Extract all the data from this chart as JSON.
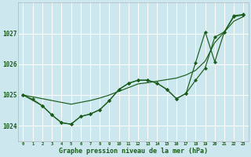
{
  "title": "Graphe pression niveau de la mer (hPa)",
  "bg_color": "#cce8ee",
  "grid_color": "#ffffff",
  "line_color": "#1a5c1a",
  "xlim": [
    -0.5,
    23.5
  ],
  "ylim": [
    1023.5,
    1028.0
  ],
  "yticks": [
    1024,
    1025,
    1026,
    1027
  ],
  "xticks": [
    0,
    1,
    2,
    3,
    4,
    5,
    6,
    7,
    8,
    9,
    10,
    11,
    12,
    13,
    14,
    15,
    16,
    17,
    18,
    19,
    20,
    21,
    22,
    23
  ],
  "line1_x": [
    0,
    1,
    2,
    3,
    4,
    5,
    6,
    7,
    8,
    9,
    10,
    11,
    12,
    13,
    14,
    15,
    16,
    17,
    18,
    19,
    20,
    21,
    22,
    23
  ],
  "line1_y": [
    1025.0,
    1024.94,
    1024.88,
    1024.82,
    1024.76,
    1024.7,
    1024.76,
    1024.82,
    1024.9,
    1025.0,
    1025.12,
    1025.24,
    1025.36,
    1025.4,
    1025.45,
    1025.5,
    1025.55,
    1025.65,
    1025.8,
    1026.1,
    1026.7,
    1027.05,
    1027.4,
    1027.55
  ],
  "line2_x": [
    0,
    1,
    2,
    3,
    4,
    5,
    6,
    7,
    8,
    9,
    10,
    11,
    12,
    13,
    14,
    15,
    16,
    17,
    18,
    19,
    20,
    21,
    22,
    23
  ],
  "line2_y": [
    1025.0,
    1024.86,
    1024.65,
    1024.35,
    1024.1,
    1024.05,
    1024.3,
    1024.38,
    1024.52,
    1024.82,
    1025.18,
    1025.38,
    1025.48,
    1025.48,
    1025.38,
    1025.18,
    1024.88,
    1025.05,
    1025.48,
    1025.88,
    1026.88,
    1027.05,
    1027.55,
    1027.6
  ],
  "line3_x": [
    0,
    2,
    3,
    4,
    5,
    6,
    7,
    8,
    9,
    10,
    11,
    12,
    13,
    14,
    15,
    16,
    17,
    18,
    19,
    20,
    21,
    22,
    23
  ],
  "line3_y": [
    1025.0,
    1024.65,
    1024.35,
    1024.1,
    1024.05,
    1024.3,
    1024.38,
    1024.52,
    1024.82,
    1025.18,
    1025.38,
    1025.48,
    1025.48,
    1025.38,
    1025.18,
    1024.88,
    1025.05,
    1026.05,
    1027.05,
    1026.08,
    1027.05,
    1027.58,
    1027.62
  ]
}
